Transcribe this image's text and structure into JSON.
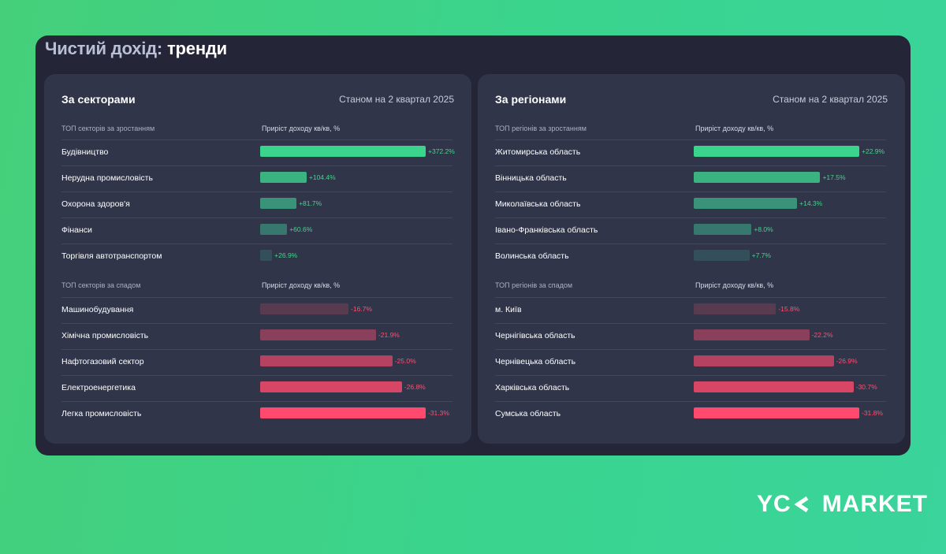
{
  "title_part1": "Чистий дохід:",
  "title_part2": "тренди",
  "brand": {
    "letters": "YC",
    "name": "MARKET"
  },
  "colors": {
    "positive": [
      "#3ad48c",
      "#3bb381",
      "#3a9379",
      "#37776e",
      "#334f59"
    ],
    "negative": [
      "#593b50",
      "#8a405a",
      "#b44260",
      "#d84665",
      "#ff4a6e"
    ],
    "pos_text": "#45d38a",
    "neg_text": "#ff4f6e"
  },
  "chart_data": [
    {
      "type": "bar",
      "title": "За секторами",
      "subtitle": "Станом на 2 квартал 2025",
      "xlabel": "Приріст доходу кв/кв, %",
      "groups": [
        {
          "label": "ТОП секторів за зростанням",
          "value_label": "Приріст доходу кв/кв, %",
          "kind": "positive",
          "categories": [
            "Будівництво",
            "Нерудна промисловість",
            "Охорона здоров'я",
            "Фінанси",
            "Торгівля автотранспортом"
          ],
          "values": [
            372.2,
            104.4,
            81.7,
            60.6,
            26.9
          ],
          "labels": [
            "+372.2%",
            "+104.4%",
            "+81.7%",
            "+60.6%",
            "+26.9%"
          ]
        },
        {
          "label": "ТОП секторів за спадом",
          "value_label": "Приріст доходу кв/кв, %",
          "kind": "negative",
          "categories": [
            "Машинобудування",
            "Хімічна промисловість",
            "Нафтогазовий сектор",
            "Електроенергетика",
            "Легка промисловість"
          ],
          "values": [
            -16.7,
            -21.9,
            -25.0,
            -26.8,
            -31.3
          ],
          "labels": [
            "-16.7%",
            "-21.9%",
            "-25.0%",
            "-26.8%",
            "-31.3%"
          ]
        }
      ]
    },
    {
      "type": "bar",
      "title": "За регіонами",
      "subtitle": "Станом на 2 квартал 2025",
      "xlabel": "Приріст доходу кв/кв, %",
      "groups": [
        {
          "label": "ТОП регіонів за зростанням",
          "value_label": "Приріст доходу кв/кв, %",
          "kind": "positive",
          "categories": [
            "Житомирська область",
            "Вінницька область",
            "Миколаївська область",
            "Івано-Франківська область",
            "Волинська область"
          ],
          "values": [
            22.9,
            17.5,
            14.3,
            8.0,
            7.7
          ],
          "labels": [
            "+22.9%",
            "+17.5%",
            "+14.3%",
            "+8.0%",
            "+7.7%"
          ]
        },
        {
          "label": "ТОП регіонів за спадом",
          "value_label": "Приріст доходу кв/кв, %",
          "kind": "negative",
          "categories": [
            "м. Київ",
            "Чернігівська область",
            "Чернівецька область",
            "Харківська область",
            "Сумська область"
          ],
          "values": [
            -15.8,
            -22.2,
            -26.9,
            -30.7,
            -31.8
          ],
          "labels": [
            "-15.8%",
            "-22.2%",
            "-26.9%",
            "-30.7%",
            "-31.8%"
          ]
        }
      ]
    }
  ]
}
